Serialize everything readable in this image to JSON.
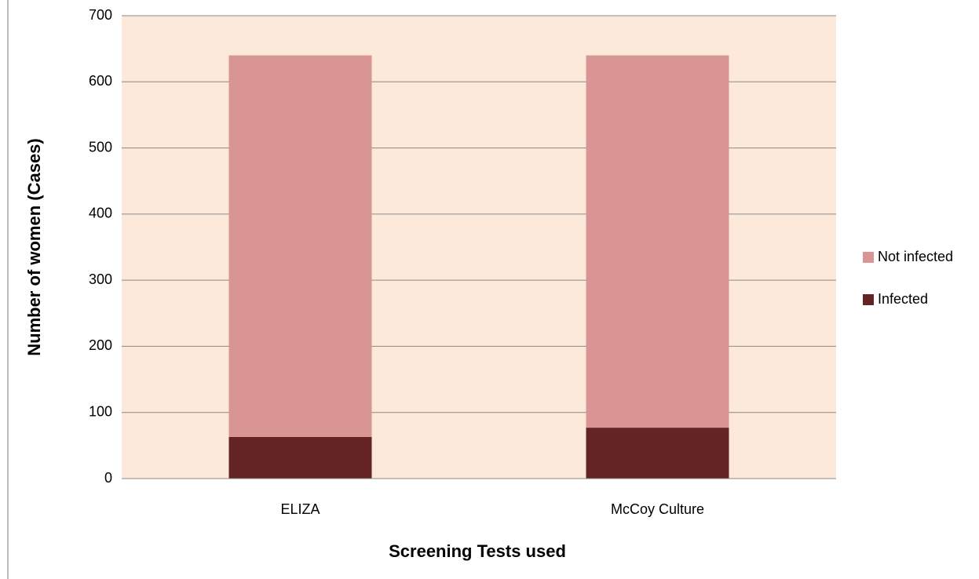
{
  "chart_data": {
    "type": "stacked_bar",
    "x_label": "Screening Tests used",
    "y_label": "Number of women (Cases)",
    "categories": [
      "ELIZA",
      "McCoy Culture"
    ],
    "series": [
      {
        "name": "Infected",
        "color": "#632423",
        "values": [
          63,
          77
        ]
      },
      {
        "name": "Not infected",
        "color": "#d99594",
        "values": [
          577,
          563
        ]
      }
    ],
    "ylim": [
      0,
      700
    ],
    "yticks": [
      0,
      100,
      200,
      300,
      400,
      500,
      600,
      700
    ],
    "grid": true,
    "legend": "right",
    "plot_background": "#fde9d9"
  }
}
